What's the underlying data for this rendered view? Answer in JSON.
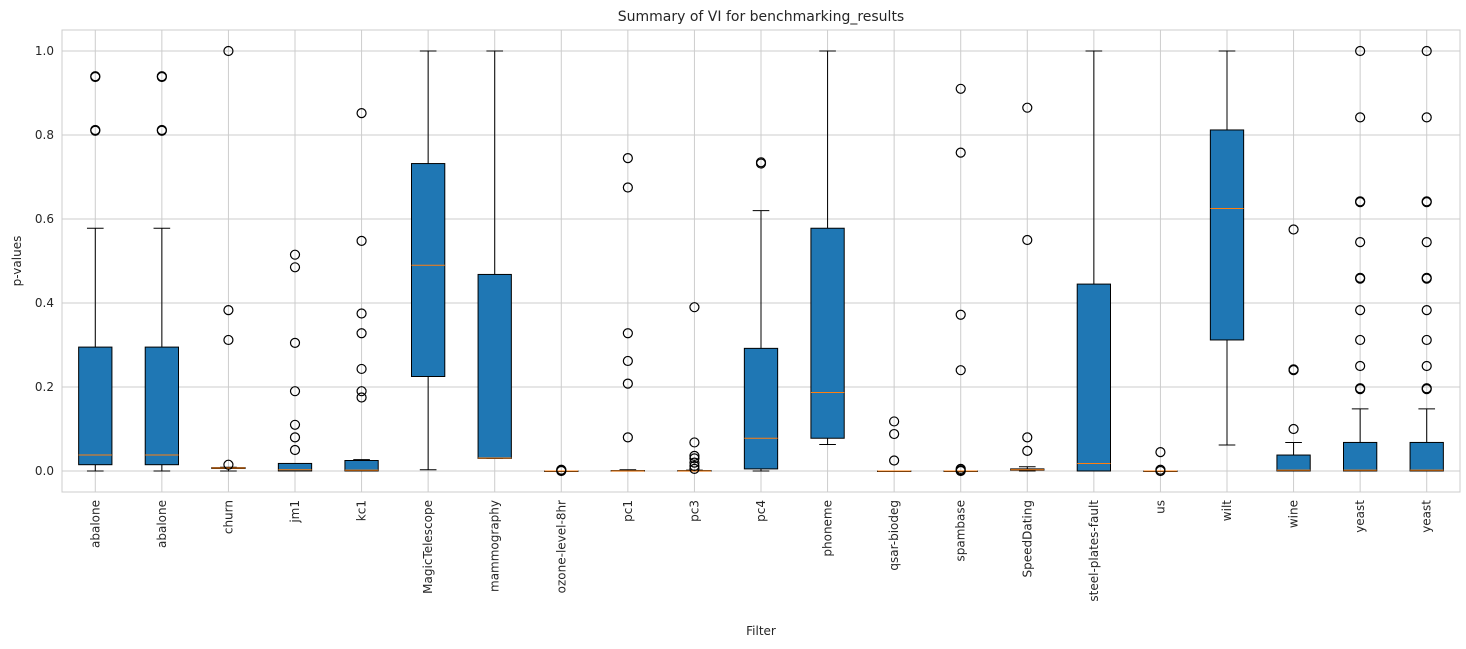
{
  "chart_data": {
    "type": "boxplot",
    "title": "Summary of VI for benchmarking_results",
    "xlabel": "Filter",
    "ylabel": "p-values",
    "ylim": [
      -0.05,
      1.05
    ],
    "yticks": [
      "0.0",
      "0.2",
      "0.4",
      "0.6",
      "0.8",
      "1.0"
    ],
    "grid": true,
    "box_color": "#1f77b4",
    "median_color": "#ff7f0e",
    "categories": [
      "abalone",
      "abalone",
      "churn",
      "jm1",
      "kc1",
      "MagicTelescope",
      "mammography",
      "ozone-level-8hr",
      "pc1",
      "pc3",
      "pc4",
      "phoneme",
      "qsar-biodeg",
      "spambase",
      "SpeedDating",
      "steel-plates-fault",
      "us",
      "wilt",
      "wine",
      "yeast",
      "yeast"
    ],
    "boxes": [
      {
        "whisker_low": 0.0,
        "q1": 0.015,
        "median": 0.038,
        "q3": 0.295,
        "whisker_high": 0.578,
        "outliers": [
          0.81,
          0.812,
          0.938,
          0.94
        ]
      },
      {
        "whisker_low": 0.0,
        "q1": 0.015,
        "median": 0.038,
        "q3": 0.295,
        "whisker_high": 0.578,
        "outliers": [
          0.81,
          0.812,
          0.938,
          0.94
        ]
      },
      {
        "whisker_low": 0.0,
        "q1": 0.006,
        "median": 0.007,
        "q3": 0.008,
        "whisker_high": 0.009,
        "outliers": [
          0.015,
          0.312,
          0.383,
          1.0
        ]
      },
      {
        "whisker_low": 0.0,
        "q1": 0.0,
        "median": 0.003,
        "q3": 0.018,
        "whisker_high": 0.018,
        "outliers": [
          0.05,
          0.08,
          0.11,
          0.19,
          0.305,
          0.485,
          0.515
        ]
      },
      {
        "whisker_low": 0.0,
        "q1": 0.0,
        "median": 0.002,
        "q3": 0.025,
        "whisker_high": 0.027,
        "outliers": [
          0.175,
          0.19,
          0.243,
          0.328,
          0.375,
          0.548,
          0.852
        ]
      },
      {
        "whisker_low": 0.003,
        "q1": 0.225,
        "median": 0.49,
        "q3": 0.732,
        "whisker_high": 1.0,
        "outliers": []
      },
      {
        "whisker_low": 0.03,
        "q1": 0.03,
        "median": 0.031,
        "q3": 0.468,
        "whisker_high": 1.0,
        "outliers": []
      },
      {
        "whisker_low": 0.0,
        "q1": 0.0,
        "median": 0.0,
        "q3": 0.0,
        "whisker_high": 0.0,
        "outliers": [
          0.0,
          0.002,
          0.003
        ]
      },
      {
        "whisker_low": 0.0,
        "q1": 0.0,
        "median": 0.0,
        "q3": 0.001,
        "whisker_high": 0.003,
        "outliers": [
          0.08,
          0.208,
          0.262,
          0.328,
          0.675,
          0.745
        ]
      },
      {
        "whisker_low": 0.0,
        "q1": 0.0,
        "median": 0.0,
        "q3": 0.001,
        "whisker_high": 0.002,
        "outliers": [
          0.005,
          0.012,
          0.02,
          0.03,
          0.036,
          0.068,
          0.39
        ]
      },
      {
        "whisker_low": 0.0,
        "q1": 0.005,
        "median": 0.078,
        "q3": 0.292,
        "whisker_high": 0.62,
        "outliers": [
          0.732,
          0.735
        ]
      },
      {
        "whisker_low": 0.063,
        "q1": 0.078,
        "median": 0.187,
        "q3": 0.578,
        "whisker_high": 1.0,
        "outliers": []
      },
      {
        "whisker_low": 0.0,
        "q1": 0.0,
        "median": 0.0,
        "q3": 0.0,
        "whisker_high": 0.0,
        "outliers": [
          0.025,
          0.088,
          0.118
        ]
      },
      {
        "whisker_low": 0.0,
        "q1": 0.0,
        "median": 0.0,
        "q3": 0.0,
        "whisker_high": 0.0,
        "outliers": [
          0.0,
          0.002,
          0.005,
          0.24,
          0.372,
          0.758,
          0.91
        ]
      },
      {
        "whisker_low": 0.0,
        "q1": 0.002,
        "median": 0.003,
        "q3": 0.005,
        "whisker_high": 0.01,
        "outliers": [
          0.048,
          0.08,
          0.55,
          0.865
        ]
      },
      {
        "whisker_low": 0.0,
        "q1": 0.0,
        "median": 0.018,
        "q3": 0.445,
        "whisker_high": 1.0,
        "outliers": []
      },
      {
        "whisker_low": 0.0,
        "q1": 0.0,
        "median": 0.0,
        "q3": 0.0,
        "whisker_high": 0.0,
        "outliers": [
          0.0,
          0.003,
          0.045
        ]
      },
      {
        "whisker_low": 0.062,
        "q1": 0.312,
        "median": 0.625,
        "q3": 0.812,
        "whisker_high": 1.0,
        "outliers": []
      },
      {
        "whisker_low": 0.0,
        "q1": 0.0,
        "median": 0.002,
        "q3": 0.038,
        "whisker_high": 0.068,
        "outliers": [
          0.1,
          0.24,
          0.242,
          0.575
        ]
      },
      {
        "whisker_low": 0.0,
        "q1": 0.0,
        "median": 0.002,
        "q3": 0.068,
        "whisker_high": 0.148,
        "outliers": [
          0.195,
          0.197,
          0.25,
          0.312,
          0.383,
          0.458,
          0.46,
          0.545,
          0.64,
          0.642,
          0.842,
          1.0
        ]
      },
      {
        "whisker_low": 0.0,
        "q1": 0.0,
        "median": 0.002,
        "q3": 0.068,
        "whisker_high": 0.148,
        "outliers": [
          0.195,
          0.197,
          0.25,
          0.312,
          0.383,
          0.458,
          0.46,
          0.545,
          0.64,
          0.642,
          0.842,
          1.0
        ]
      }
    ]
  }
}
